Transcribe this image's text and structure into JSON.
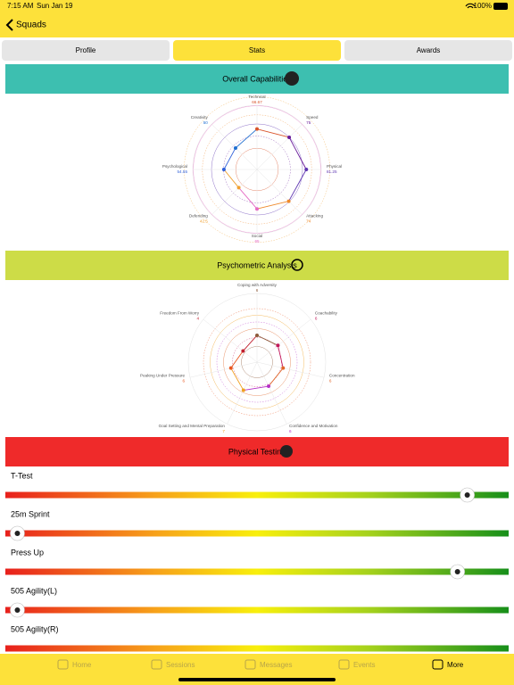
{
  "status_bar": {
    "time": "7:15 AM",
    "date": "Sun Jan 19",
    "battery": "100%"
  },
  "nav": {
    "back": "Squads"
  },
  "tabs": [
    "Profile",
    "Stats",
    "Awards"
  ],
  "active_tab": 1,
  "chart_data": [
    {
      "type": "radar",
      "title": "Overall Capabilities",
      "header_color": "#3dbfb0",
      "rlim": [
        0,
        100
      ],
      "categories": [
        "Technical",
        "Speed",
        "Physical",
        "Attacking",
        "Social",
        "Defending",
        "Psychological",
        "Creativity"
      ],
      "values": [
        66.67,
        75,
        81.25,
        74,
        65,
        42.5,
        54.55,
        50
      ],
      "point_colors": [
        "#d9542b",
        "#6a1b9a",
        "#5e35b1",
        "#ef8a2c",
        "#e56bc4",
        "#f0a030",
        "#2f5fd9",
        "#1f6fd1"
      ]
    },
    {
      "type": "radar",
      "title": "Psychometric Analysis",
      "header_color": "#cddc47",
      "rlim": [
        0,
        10
      ],
      "categories": [
        "Coping with Adversity",
        "Coachability",
        "Concentration",
        "Confidence and Motivation",
        "Goal Setting and Mental Preparation",
        "Peaking Under Pressure",
        "Freedom From Worry"
      ],
      "values": [
        6,
        6,
        6,
        6,
        7,
        6,
        4
      ],
      "point_colors": [
        "#8d5a3a",
        "#c2185b",
        "#e0662a",
        "#b530c8",
        "#f0a020",
        "#e8561f",
        "#c01e2e"
      ]
    }
  ],
  "physical_testing": {
    "title": "Physical Testing",
    "header_color": "#ef2a2a",
    "xlim": [
      0,
      100
    ],
    "tests": [
      {
        "name": "T-Test",
        "value": 93
      },
      {
        "name": "25m Sprint",
        "value": 1
      },
      {
        "name": "Press Up",
        "value": 91
      },
      {
        "name": "505 Agility(L)",
        "value": 1
      },
      {
        "name": "505 Agility(R)",
        "value": null
      }
    ]
  },
  "tab_bar": [
    "Home",
    "Sessions",
    "Messages",
    "Events",
    "More"
  ],
  "active_tab_bar": 4
}
